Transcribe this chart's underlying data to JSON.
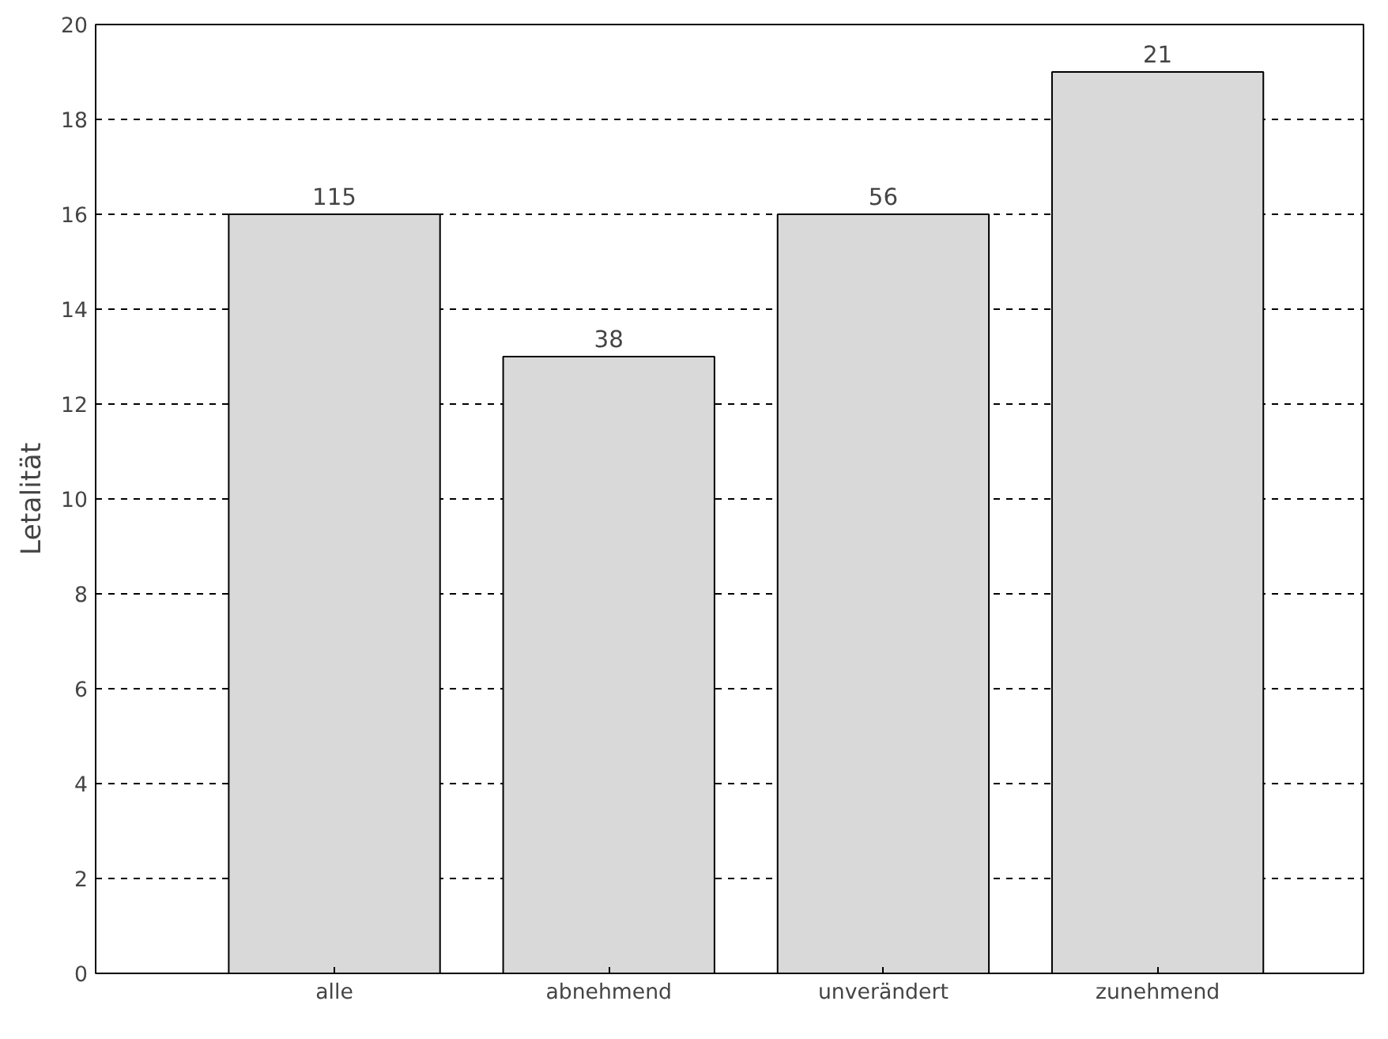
{
  "chart_data": {
    "type": "bar",
    "ylabel": "Letalität",
    "categories": [
      "alle",
      "abnehmend",
      "unverändert",
      "zunehmend"
    ],
    "values": [
      16,
      13,
      16,
      19
    ],
    "color": "#d9d9d9",
    "ylim": [
      0,
      20
    ],
    "yticks": [
      0,
      2,
      4,
      6,
      8,
      10,
      12,
      14,
      16,
      18,
      20
    ],
    "grid": "y",
    "annotations": [
      {
        "text": "115",
        "x": "alle",
        "y": 16
      },
      {
        "text": "38",
        "x": "abnehmend",
        "y": 13
      },
      {
        "text": "56",
        "x": "unverändert",
        "y": 16
      },
      {
        "text": "21",
        "x": "zunehmend",
        "y": 19
      }
    ]
  }
}
